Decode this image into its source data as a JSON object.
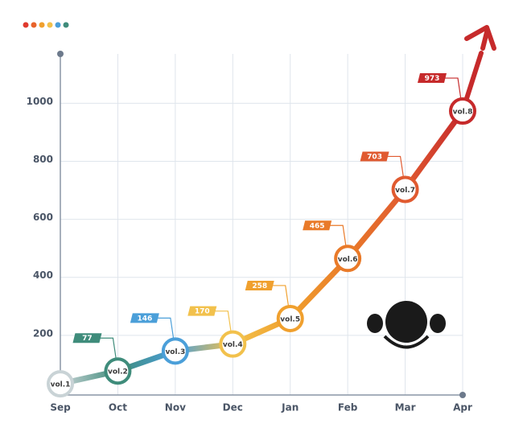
{
  "chart_data": {
    "type": "line",
    "categories": [
      "Sep",
      "Oct",
      "Nov",
      "Dec",
      "Jan",
      "Feb",
      "Mar",
      "Apr"
    ],
    "values": [
      33,
      77,
      146,
      170,
      258,
      465,
      703,
      973
    ],
    "value_labels": [
      null,
      "77",
      "146",
      "170",
      "258",
      "465",
      "703",
      "973"
    ],
    "point_labels": [
      "vol.1",
      "vol.2",
      "vol.3",
      "vol.4",
      "vol.5",
      "vol.6",
      "vol.7",
      "vol.8"
    ],
    "colors": [
      "#c9d3d6",
      "#3f8c7b",
      "#4b9fd9",
      "#f2c14c",
      "#f0a02e",
      "#e97a29",
      "#e05a30",
      "#c62a2b"
    ],
    "ylim": [
      0,
      1170
    ],
    "yticks": [
      200,
      400,
      600,
      800,
      1000
    ],
    "grid": true
  }
}
